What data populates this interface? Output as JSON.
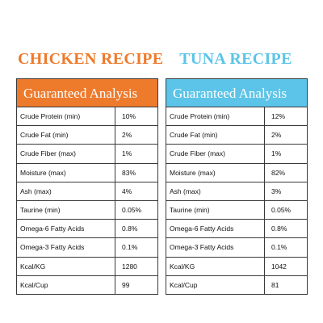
{
  "colors": {
    "chicken_accent": "#ee7a2c",
    "tuna_accent": "#5cc4e8",
    "border": "#3a3a3a"
  },
  "chicken": {
    "title": "CHICKEN RECIPE",
    "header": "Guaranteed Analysis",
    "rows": [
      {
        "label": "Crude Protein (min)",
        "value": "10%"
      },
      {
        "label": "Crude Fat (min)",
        "value": "2%"
      },
      {
        "label": "Crude Fiber (max)",
        "value": "1%"
      },
      {
        "label": "Moisture (max)",
        "value": "83%"
      },
      {
        "label": "Ash (max)",
        "value": "4%"
      },
      {
        "label": "Taurine (min)",
        "value": "0.05%"
      },
      {
        "label": "Omega-6 Fatty Acids",
        "value": "0.8%"
      },
      {
        "label": "Omega-3 Fatty Acids",
        "value": "0.1%"
      },
      {
        "label": "Kcal/KG",
        "value": "1280"
      },
      {
        "label": "Kcal/Cup",
        "value": "99"
      }
    ]
  },
  "tuna": {
    "title": "TUNA RECIPE",
    "header": "Guaranteed Analysis",
    "rows": [
      {
        "label": "Crude Protein (min)",
        "value": "12%"
      },
      {
        "label": "Crude Fat (min)",
        "value": "2%"
      },
      {
        "label": "Crude Fiber (max)",
        "value": "1%"
      },
      {
        "label": "Moisture (max)",
        "value": "82%"
      },
      {
        "label": "Ash (max)",
        "value": "3%"
      },
      {
        "label": "Taurine (min)",
        "value": "0.05%"
      },
      {
        "label": "Omega-6 Fatty Acids",
        "value": "0.8%"
      },
      {
        "label": "Omega-3 Fatty Acids",
        "value": "0.1%"
      },
      {
        "label": "Kcal/KG",
        "value": "1042"
      },
      {
        "label": "Kcal/Cup",
        "value": "81"
      }
    ]
  }
}
